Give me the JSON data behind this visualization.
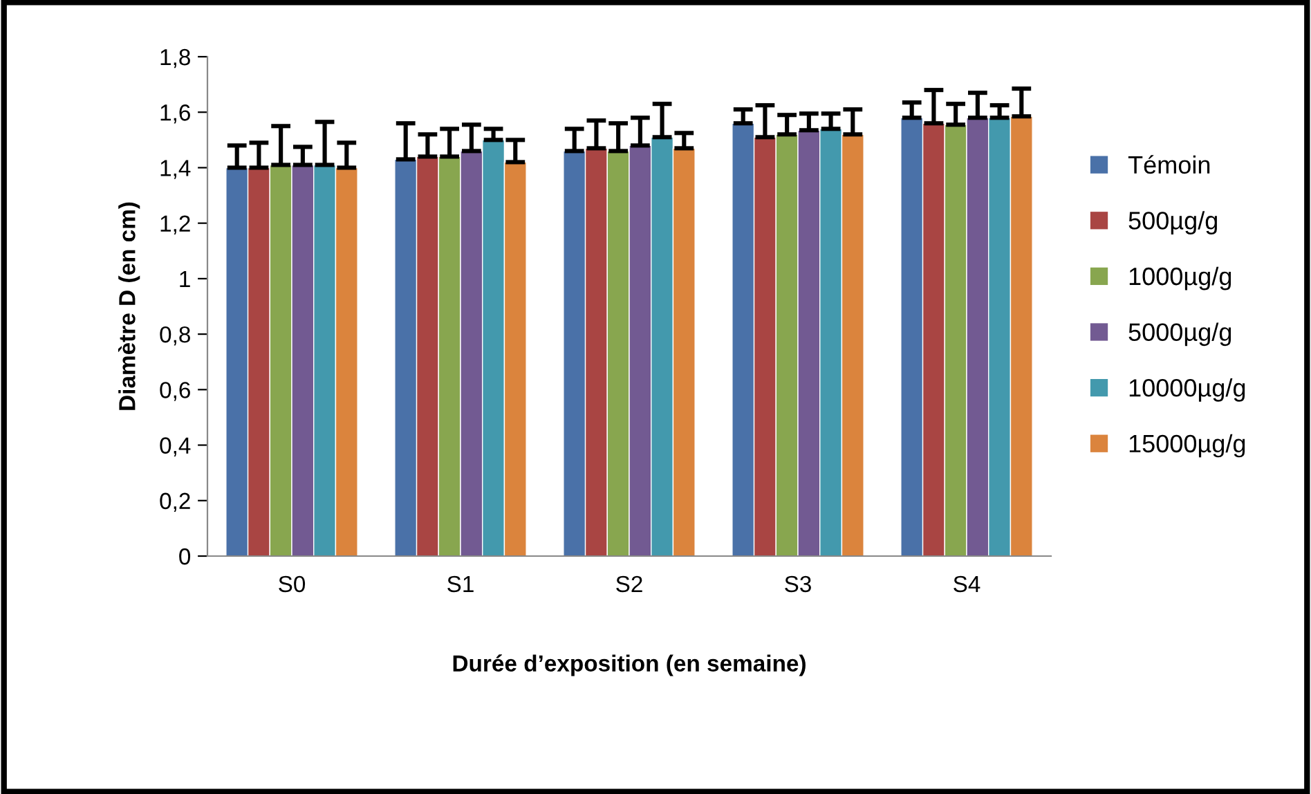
{
  "chart_data": {
    "type": "bar",
    "xlabel": "Durée d’exposition (en semaine)",
    "ylabel": "Diamètre D (en cm)",
    "categories": [
      "S0",
      "S1",
      "S2",
      "S3",
      "S4"
    ],
    "series": [
      {
        "name": "Témoin",
        "color": "#4a71a8",
        "values": [
          1.4,
          1.43,
          1.46,
          1.56,
          1.58
        ],
        "errors": [
          [
            1.4,
            1.48
          ],
          [
            1.43,
            1.56
          ],
          [
            1.46,
            1.54
          ],
          [
            1.56,
            1.61
          ],
          [
            1.58,
            1.635
          ]
        ]
      },
      {
        "name": "500µg/g",
        "color": "#a94543",
        "values": [
          1.4,
          1.44,
          1.47,
          1.51,
          1.56
        ],
        "errors": [
          [
            1.4,
            1.49
          ],
          [
            1.44,
            1.52
          ],
          [
            1.47,
            1.57
          ],
          [
            1.51,
            1.625
          ],
          [
            1.56,
            1.68
          ]
        ]
      },
      {
        "name": "1000µg/g",
        "color": "#88a64f",
        "values": [
          1.41,
          1.44,
          1.46,
          1.52,
          1.555
        ],
        "errors": [
          [
            1.41,
            1.55
          ],
          [
            1.44,
            1.54
          ],
          [
            1.46,
            1.56
          ],
          [
            1.52,
            1.59
          ],
          [
            1.555,
            1.63
          ]
        ]
      },
      {
        "name": "5000µg/g",
        "color": "#725a92",
        "values": [
          1.41,
          1.46,
          1.48,
          1.535,
          1.58
        ],
        "errors": [
          [
            1.41,
            1.475
          ],
          [
            1.46,
            1.555
          ],
          [
            1.48,
            1.58
          ],
          [
            1.535,
            1.595
          ],
          [
            1.58,
            1.67
          ]
        ]
      },
      {
        "name": "10000µg/g",
        "color": "#4399ad",
        "values": [
          1.41,
          1.5,
          1.51,
          1.54,
          1.58
        ],
        "errors": [
          [
            1.41,
            1.565
          ],
          [
            1.5,
            1.54
          ],
          [
            1.51,
            1.63
          ],
          [
            1.54,
            1.595
          ],
          [
            1.58,
            1.625
          ]
        ]
      },
      {
        "name": "15000µg/g",
        "color": "#db843d",
        "values": [
          1.4,
          1.42,
          1.47,
          1.52,
          1.585
        ],
        "errors": [
          [
            1.4,
            1.49
          ],
          [
            1.42,
            1.5
          ],
          [
            1.47,
            1.525
          ],
          [
            1.52,
            1.61
          ],
          [
            1.585,
            1.685
          ]
        ]
      }
    ],
    "ylim": [
      0,
      1.8
    ],
    "yticks": [
      0,
      {
        "value": 0.2,
        "label": "0,2"
      },
      {
        "value": 0.4,
        "label": "0,4"
      },
      {
        "value": 0.6,
        "label": "0,6"
      },
      {
        "value": 0.8,
        "label": "0,8"
      },
      1,
      {
        "value": 1.2,
        "label": "1,2"
      },
      {
        "value": 1.4,
        "label": "1,4"
      },
      {
        "value": 1.6,
        "label": "1,6"
      },
      {
        "value": 1.8,
        "label": "1,8"
      }
    ],
    "grid": false,
    "legend": "right"
  }
}
